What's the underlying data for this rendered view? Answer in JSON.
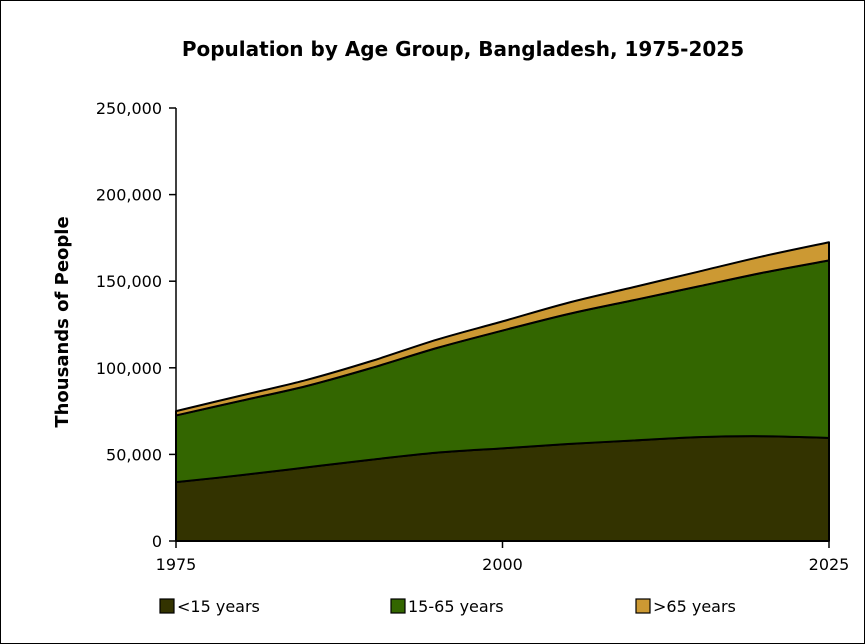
{
  "chart_data": {
    "type": "area",
    "stacked": true,
    "title": "Population by Age Group, Bangladesh, 1975-2025",
    "ylabel": "Thousands of People",
    "xlabel": "",
    "x": [
      1975,
      1980,
      1985,
      1990,
      1995,
      2000,
      2005,
      2010,
      2015,
      2020,
      2025
    ],
    "x_ticks": [
      1975,
      2000,
      2025
    ],
    "x_tick_labels": [
      "1975",
      "2000",
      "2025"
    ],
    "ylim": [
      0,
      250000
    ],
    "y_ticks": [
      0,
      50000,
      100000,
      150000,
      200000,
      250000
    ],
    "y_tick_labels": [
      "0",
      "50,000",
      "100,000",
      "150,000",
      "200,000",
      "250,000"
    ],
    "grid": false,
    "legend_position": "bottom",
    "series": [
      {
        "name": "<15 years",
        "color": "#333300",
        "values": [
          34000,
          38000,
          42500,
          47000,
          51000,
          53500,
          56000,
          58000,
          60000,
          60500,
          59500
        ]
      },
      {
        "name": "15-65 years",
        "color": "#336600",
        "values": [
          38500,
          43000,
          47000,
          53000,
          60500,
          68000,
          75000,
          81000,
          87000,
          94500,
          102500
        ]
      },
      {
        "name": ">65 years",
        "color": "#cc9933",
        "values": [
          2500,
          3000,
          3500,
          4000,
          4800,
          5300,
          6500,
          7500,
          8500,
          9500,
          10500
        ]
      }
    ]
  }
}
